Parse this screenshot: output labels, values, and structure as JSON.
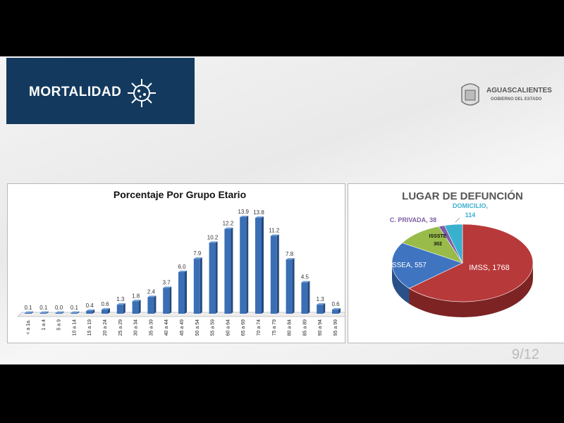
{
  "header": {
    "title": "MORTALIDAD",
    "icon": "virus-icon"
  },
  "logo": {
    "name": "AGUASCALIENTES",
    "subtitle": "GOBIERNO DEL ESTADO"
  },
  "page_indicator": "9/12",
  "chart_data": [
    {
      "type": "bar",
      "title": "Porcentaje Por Grupo Etario",
      "categories": [
        "< a 1a.",
        "1 a 4",
        "5 a 9",
        "10 a 14",
        "15 a 19",
        "20 a 24",
        "25 a 29",
        "30 a 34",
        "35 a 39",
        "40 a 44",
        "45 a 49",
        "50 a 54",
        "55 a 59",
        "60 a 64",
        "65 a 69",
        "70 a 74",
        "75 a 79",
        "80 a 84",
        "85 a 89",
        "90 a 94",
        "95 a 99"
      ],
      "values": [
        0.1,
        0.1,
        0.0,
        0.1,
        0.4,
        0.6,
        1.3,
        1.8,
        2.4,
        3.7,
        6.0,
        7.9,
        10.2,
        12.2,
        13.9,
        13.8,
        11.2,
        7.8,
        4.5,
        1.3,
        0.6
      ],
      "value_labels": [
        "0.1",
        "0.1",
        "0.0",
        "0.1",
        "0.4",
        "0.6",
        "1.3",
        "1.8",
        "2.4",
        "3.7",
        "6.0",
        "7.9",
        "10.2",
        "12.2",
        "13.9",
        "13.8",
        "11.2",
        "7.8",
        "4.5",
        "1.3",
        "0.6"
      ],
      "ylim": [
        0,
        14
      ],
      "grid": false,
      "color": "#3a6fb5"
    },
    {
      "type": "pie",
      "title": "LUGAR DE DEFUNCIÓN",
      "slices": [
        {
          "name": "IMSS",
          "value": 1768,
          "label": "IMSS, 1768",
          "color": "#b8393a",
          "side": "#7d2324"
        },
        {
          "name": "ISSEA",
          "value": 557,
          "label": "ISSEA, 557",
          "color": "#3f74c0",
          "side": "#2a5088"
        },
        {
          "name": "ISSSTE",
          "value": 302,
          "label": "ISSSTE\n302",
          "color": "#98bb4a",
          "side": "#6a8532"
        },
        {
          "name": "C. PRIVADA",
          "value": 38,
          "label": "C. PRIVADA, 38",
          "color": "#7e5ea6",
          "side": "#574075"
        },
        {
          "name": "DOMICILIO",
          "value": 114,
          "label": "DOMICILIO, 114",
          "color": "#3ab0cf",
          "side": "#267a90"
        }
      ]
    }
  ]
}
